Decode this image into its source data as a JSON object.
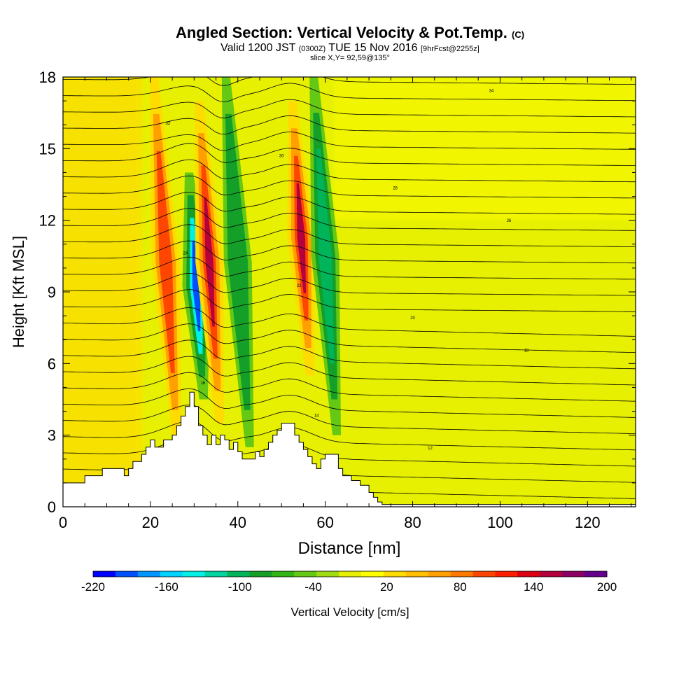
{
  "title": {
    "main": "Angled Section: Vertical Velocity & Pot.Temp.",
    "copyright": "(C)",
    "valid_prefix": "Valid 1200 JST",
    "valid_utc": "(0300Z)",
    "valid_date": "TUE 15 Nov 2016",
    "forecast": "[9hrFcst@2255z]",
    "slice": "slice X,Y= 92,59@135°"
  },
  "chart_data": {
    "type": "heatmap",
    "xlabel": "Distance [nm]",
    "ylabel": "Height [Kft MSL]",
    "xlim": [
      0,
      131
    ],
    "ylim": [
      0,
      18
    ],
    "xticks": [
      0,
      20,
      40,
      60,
      80,
      100,
      120
    ],
    "yticks": [
      0,
      3,
      6,
      9,
      12,
      15,
      18
    ],
    "colorbar": {
      "label": "Vertical Velocity [cm/s]",
      "tick_labels": [
        "-220",
        "-160",
        "-100",
        "-40",
        "20",
        "80",
        "140",
        "200"
      ],
      "min": -220,
      "max": 200,
      "step": 20,
      "colors": [
        "#0000ff",
        "#0050ff",
        "#0096ff",
        "#00d2ff",
        "#00f0e6",
        "#00d2a0",
        "#00b45a",
        "#14a028",
        "#32b414",
        "#64c814",
        "#a0dc14",
        "#e6f000",
        "#ffff00",
        "#ffdc00",
        "#ffbe00",
        "#ffa000",
        "#ff7800",
        "#ff4600",
        "#ff1e00",
        "#dc0014",
        "#b4003c",
        "#8c0064",
        "#64008c"
      ]
    },
    "velocity_features": [
      {
        "type": "updraft",
        "x_nm": 23.5,
        "from_kft": 2.5,
        "to_kft": 18,
        "peak_cm_s": 120
      },
      {
        "type": "downdraft",
        "x_nm": 30.5,
        "from_kft": 4.5,
        "to_kft": 14,
        "peak_cm_s": -200
      },
      {
        "type": "updraft",
        "x_nm": 33.5,
        "from_kft": 3.5,
        "to_kft": 17,
        "peak_cm_s": 180
      },
      {
        "type": "downdraft",
        "x_nm": 40,
        "from_kft": 2.5,
        "to_kft": 18,
        "peak_cm_s": -80
      },
      {
        "type": "updraft",
        "x_nm": 54.5,
        "from_kft": 5.5,
        "to_kft": 17,
        "peak_cm_s": 180
      },
      {
        "type": "downdraft",
        "x_nm": 60,
        "from_kft": 3,
        "to_kft": 18,
        "peak_cm_s": -90
      }
    ],
    "theta_contour_labels": [
      "10",
      "12",
      "14",
      "16",
      "18",
      "20",
      "22",
      "24",
      "26",
      "28",
      "30",
      "32",
      "34"
    ],
    "terrain_kft": [
      [
        0,
        1.0
      ],
      [
        4,
        1.0
      ],
      [
        5,
        1.3
      ],
      [
        8,
        1.3
      ],
      [
        9,
        1.6
      ],
      [
        13,
        1.6
      ],
      [
        14,
        1.3
      ],
      [
        15,
        1.6
      ],
      [
        16,
        1.9
      ],
      [
        18,
        2.2
      ],
      [
        19,
        2.5
      ],
      [
        20,
        2.8
      ],
      [
        21,
        2.5
      ],
      [
        23,
        2.8
      ],
      [
        25,
        3.0
      ],
      [
        26,
        3.4
      ],
      [
        27,
        3.8
      ],
      [
        28,
        4.2
      ],
      [
        29,
        4.8
      ],
      [
        30,
        4.2
      ],
      [
        31,
        3.4
      ],
      [
        32,
        3.0
      ],
      [
        33,
        2.6
      ],
      [
        34,
        3.0
      ],
      [
        35,
        2.6
      ],
      [
        36,
        3.0
      ],
      [
        37,
        2.8
      ],
      [
        38,
        2.4
      ],
      [
        39,
        2.7
      ],
      [
        40,
        2.3
      ],
      [
        41,
        2.0
      ],
      [
        43,
        2.0
      ],
      [
        44,
        2.3
      ],
      [
        45,
        2.1
      ],
      [
        46,
        2.4
      ],
      [
        47,
        2.7
      ],
      [
        48,
        3.0
      ],
      [
        49,
        3.2
      ],
      [
        50,
        3.5
      ],
      [
        52,
        3.5
      ],
      [
        53,
        3.0
      ],
      [
        54,
        2.7
      ],
      [
        55,
        2.4
      ],
      [
        56,
        2.1
      ],
      [
        57,
        1.8
      ],
      [
        58,
        1.6
      ],
      [
        59,
        2.0
      ],
      [
        60,
        2.2
      ],
      [
        62,
        2.2
      ],
      [
        63,
        1.6
      ],
      [
        64,
        1.3
      ],
      [
        66,
        1.1
      ],
      [
        68,
        0.9
      ],
      [
        70,
        0.6
      ],
      [
        71,
        0.4
      ],
      [
        72,
        0.2
      ],
      [
        73,
        0.1
      ],
      [
        131,
        0.1
      ]
    ]
  }
}
